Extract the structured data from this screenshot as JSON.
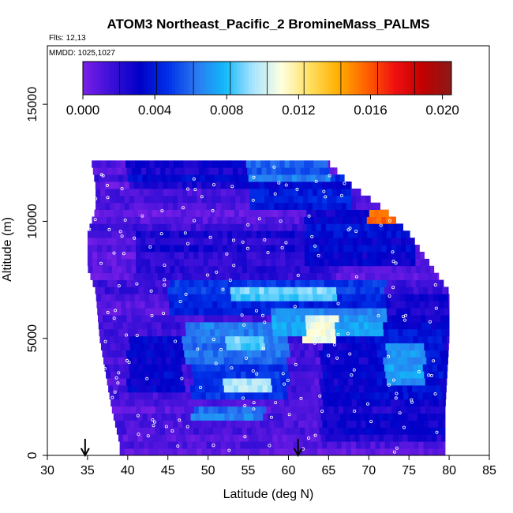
{
  "chart_data": {
    "type": "heatmap",
    "title": "ATOM3 Northeast_Pacific_2 BromineMass_PALMS",
    "annotations": [
      "Flts: 12,13",
      "MMDD: 1025,1027"
    ],
    "xlabel": "Latitude (deg N)",
    "ylabel": "Altitude (m)",
    "xlim": [
      30,
      85
    ],
    "ylim": [
      0,
      17500
    ],
    "xticks": [
      "30",
      "35",
      "40",
      "45",
      "50",
      "55",
      "60",
      "65",
      "70",
      "75",
      "80",
      "85"
    ],
    "yticks": [
      "0",
      "5000",
      "10000",
      "15000"
    ],
    "colorbar": {
      "range": [
        0.0,
        0.0205
      ],
      "ticks": [
        "0.000",
        "0.004",
        "0.008",
        "0.012",
        "0.016",
        "0.020"
      ],
      "colors": [
        "#7a1fe8",
        "#3c10d8",
        "#0000c8",
        "#0030e8",
        "#2a78f0",
        "#12b8f8",
        "#a8e4ff",
        "#ffffe0",
        "#ffe060",
        "#ffb000",
        "#ff6000",
        "#f01010",
        "#c00000",
        "#8b1a1a"
      ]
    },
    "markers": {
      "flight_track_latitudes": [
        34.7,
        61.2
      ]
    },
    "envelope": [
      {
        "alt": 12500,
        "lat_min": 35.5,
        "lat_max": 65
      },
      {
        "alt": 11500,
        "lat_min": 36.0,
        "lat_max": 68
      },
      {
        "alt": 10500,
        "lat_min": 36.0,
        "lat_max": 72
      },
      {
        "alt": 9500,
        "lat_min": 35.0,
        "lat_max": 75
      },
      {
        "alt": 8000,
        "lat_min": 35.0,
        "lat_max": 78
      },
      {
        "alt": 7000,
        "lat_min": 36.0,
        "lat_max": 80
      },
      {
        "alt": 5000,
        "lat_min": 36.5,
        "lat_max": 80
      },
      {
        "alt": 2000,
        "lat_min": 38.0,
        "lat_max": 79.5
      },
      {
        "alt": 500,
        "lat_min": 39.0,
        "lat_max": 79.5
      },
      {
        "alt": 0,
        "lat_min": 39.0,
        "lat_max": 79.5
      }
    ],
    "features": [
      {
        "lat_min": 45,
        "lat_max": 72,
        "alt_min": 6000,
        "alt_max": 7600,
        "value": 0.0045
      },
      {
        "lat_min": 53,
        "lat_max": 66,
        "alt_min": 6500,
        "alt_max": 7200,
        "value": 0.0085
      },
      {
        "lat_min": 58,
        "lat_max": 72,
        "alt_min": 5000,
        "alt_max": 6400,
        "value": 0.007
      },
      {
        "lat_min": 62,
        "lat_max": 66,
        "alt_min": 4800,
        "alt_max": 6000,
        "value": 0.0105
      },
      {
        "lat_min": 47,
        "lat_max": 60,
        "alt_min": 4000,
        "alt_max": 5600,
        "value": 0.006
      },
      {
        "lat_min": 52,
        "lat_max": 57,
        "alt_min": 4500,
        "alt_max": 5200,
        "value": 0.0085
      },
      {
        "lat_min": 52,
        "lat_max": 58,
        "alt_min": 2700,
        "alt_max": 3400,
        "value": 0.0095
      },
      {
        "lat_min": 48,
        "lat_max": 60,
        "alt_min": 2400,
        "alt_max": 3800,
        "value": 0.0045
      },
      {
        "lat_min": 72,
        "lat_max": 77,
        "alt_min": 3000,
        "alt_max": 4800,
        "value": 0.007
      },
      {
        "lat_min": 71,
        "lat_max": 79,
        "alt_min": 2500,
        "alt_max": 5500,
        "value": 0.0035
      },
      {
        "lat_min": 48,
        "lat_max": 57,
        "alt_min": 1400,
        "alt_max": 2000,
        "value": 0.0065
      },
      {
        "lat_min": 55,
        "lat_max": 65,
        "alt_min": 11800,
        "alt_max": 12500,
        "value": 0.006
      },
      {
        "lat_min": 55,
        "lat_max": 68,
        "alt_min": 10500,
        "alt_max": 12000,
        "value": 0.004
      },
      {
        "lat_min": 40,
        "lat_max": 55,
        "alt_min": 11500,
        "alt_max": 12500,
        "value": 0.003
      },
      {
        "lat_min": 62,
        "lat_max": 76,
        "alt_min": 8000,
        "alt_max": 10500,
        "value": 0.0035
      },
      {
        "lat_min": 70,
        "lat_max": 74,
        "alt_min": 9800,
        "alt_max": 10400,
        "value": 0.016
      },
      {
        "lat_min": 41,
        "lat_max": 66,
        "alt_min": 7600,
        "alt_max": 9500,
        "value": 0.0025
      },
      {
        "lat_min": 64,
        "lat_max": 80,
        "alt_min": 500,
        "alt_max": 7000,
        "value": 0.0028
      },
      {
        "lat_min": 40,
        "lat_max": 47,
        "alt_min": 2800,
        "alt_max": 5200,
        "value": 0.003
      }
    ]
  }
}
